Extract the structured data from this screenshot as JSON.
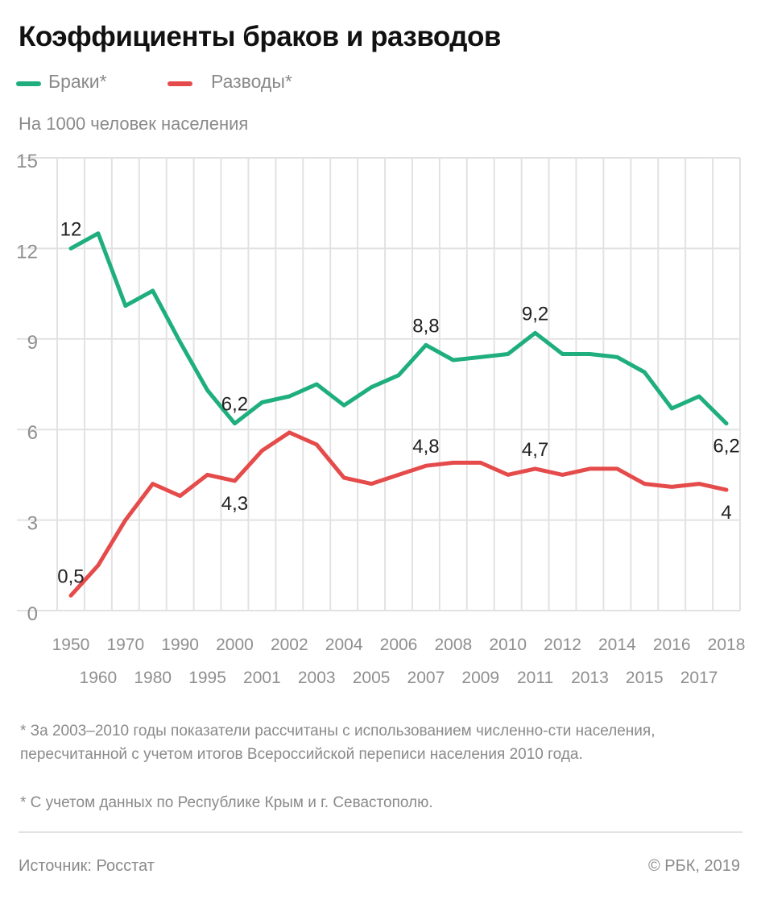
{
  "header": {
    "title": "Коэффициенты браков и разводов",
    "subtitle": "На 1000 человек населения"
  },
  "legend": [
    {
      "label": "Браки*",
      "color": "#1fae7e"
    },
    {
      "label": "Разводы*",
      "color": "#e54b4b"
    }
  ],
  "chart_data": {
    "type": "line",
    "title": "Коэффициенты браков и разводов",
    "subtitle": "На 1000 человек населения",
    "xlabel": "",
    "ylabel": "",
    "ylim": [
      0,
      15
    ],
    "yticks": [
      0,
      3,
      6,
      9,
      12,
      15
    ],
    "grid": true,
    "legend_position": "top-left",
    "categories": [
      "1950",
      "1960",
      "1970",
      "1980",
      "1990",
      "1995",
      "2000",
      "2001",
      "2002",
      "2003",
      "2004",
      "2005",
      "2006",
      "2007",
      "2008",
      "2009",
      "2010",
      "2011",
      "2012",
      "2013",
      "2014",
      "2015",
      "2016",
      "2017",
      "2018"
    ],
    "series": [
      {
        "name": "Браки*",
        "color": "#1fae7e",
        "values": [
          12.0,
          12.5,
          10.1,
          10.6,
          8.9,
          7.3,
          6.2,
          6.9,
          7.1,
          7.5,
          6.8,
          7.4,
          7.8,
          8.8,
          8.3,
          8.4,
          8.5,
          9.2,
          8.5,
          8.5,
          8.4,
          7.9,
          6.7,
          7.1,
          6.2
        ],
        "annotations": [
          {
            "index": 0,
            "text": "12",
            "placement": "above"
          },
          {
            "index": 6,
            "text": "6,2",
            "placement": "above"
          },
          {
            "index": 13,
            "text": "8,8",
            "placement": "above"
          },
          {
            "index": 17,
            "text": "9,2",
            "placement": "above"
          },
          {
            "index": 24,
            "text": "6,2",
            "placement": "below"
          }
        ]
      },
      {
        "name": "Разводы*",
        "color": "#e54b4b",
        "values": [
          0.5,
          1.5,
          3.0,
          4.2,
          3.8,
          4.5,
          4.3,
          5.3,
          5.9,
          5.5,
          4.4,
          4.2,
          4.5,
          4.8,
          4.9,
          4.9,
          4.5,
          4.7,
          4.5,
          4.7,
          4.7,
          4.2,
          4.1,
          4.2,
          4.0
        ],
        "annotations": [
          {
            "index": 0,
            "text": "0,5",
            "placement": "above"
          },
          {
            "index": 6,
            "text": "4,3",
            "placement": "below"
          },
          {
            "index": 13,
            "text": "4,8",
            "placement": "above"
          },
          {
            "index": 17,
            "text": "4,7",
            "placement": "above"
          },
          {
            "index": 24,
            "text": "4",
            "placement": "below"
          }
        ]
      }
    ]
  },
  "footnotes": [
    "* За 2003–2010 годы показатели рассчитаны с использованием численно-сти населения, пересчитанной с учетом итогов Всероссийской переписи населения 2010 года.",
    "* С учетом данных по Республике Крым и г. Севастополю."
  ],
  "footer": {
    "source": "Источник: Росстат",
    "copyright": "© РБК, 2019"
  }
}
